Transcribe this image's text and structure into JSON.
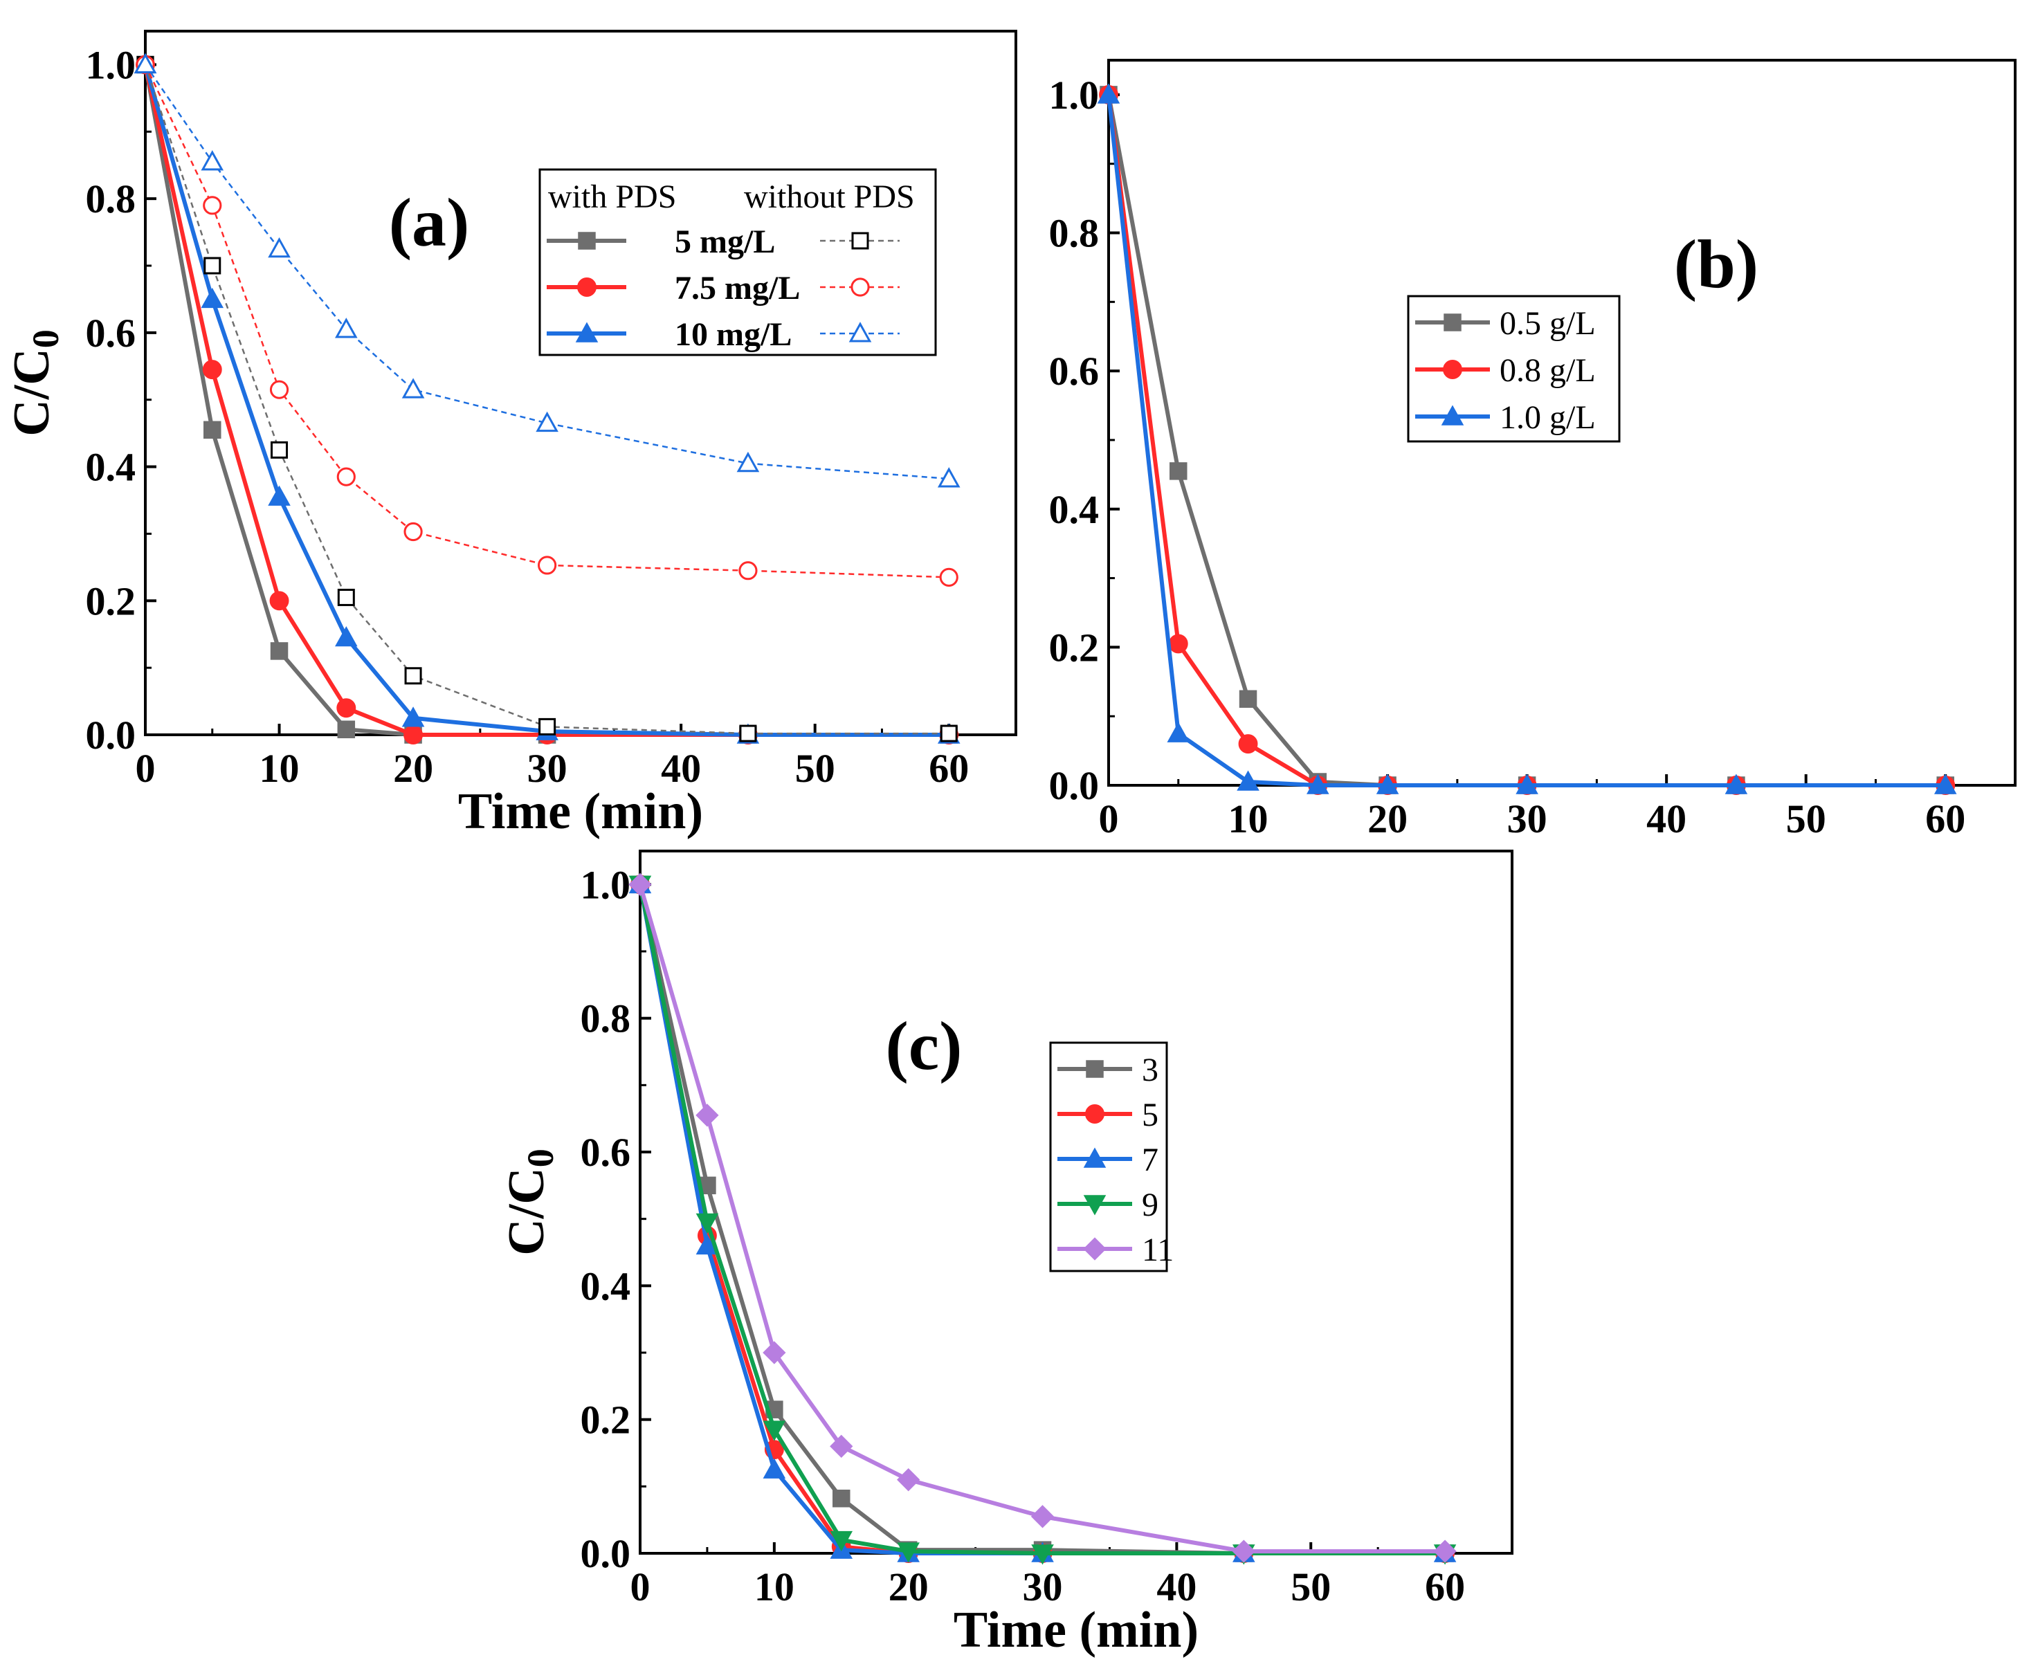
{
  "colors": {
    "gray": "#6e6e6e",
    "red": "#ff2a2a",
    "blue": "#1e6fe0",
    "green": "#10a050",
    "purple": "#b77ee0"
  },
  "chart_data": [
    {
      "panel": "(a)",
      "type": "line",
      "xlabel": "Time (min)",
      "ylabel": "C/C",
      "ylabel_sub": "0",
      "xlim": [
        0,
        65
      ],
      "ylim": [
        0,
        1.05
      ],
      "xticks": [
        0,
        10,
        20,
        30,
        40,
        50,
        60
      ],
      "yticks": [
        "0.0",
        "0.2",
        "0.4",
        "0.6",
        "0.8",
        "1.0"
      ],
      "legend": {
        "position": "top-right",
        "header_with": "with PDS",
        "header_without": "without PDS"
      },
      "x": [
        0,
        5,
        10,
        15,
        20,
        30,
        45,
        60
      ],
      "series": [
        {
          "name": "5 mg/L",
          "group": "with PDS",
          "marker": "square",
          "color": "gray",
          "values": [
            1.0,
            0.455,
            0.125,
            0.008,
            0.0,
            0.0,
            0.0,
            0.0
          ]
        },
        {
          "name": "7.5 mg/L",
          "group": "with PDS",
          "marker": "circle",
          "color": "red",
          "values": [
            1.0,
            0.545,
            0.2,
            0.04,
            0.0,
            0.0,
            0.0,
            0.0
          ]
        },
        {
          "name": "10 mg/L",
          "group": "with PDS",
          "marker": "triangle",
          "color": "blue",
          "values": [
            1.0,
            0.65,
            0.355,
            0.145,
            0.025,
            0.005,
            0.0,
            0.0
          ]
        },
        {
          "name": "5 mg/L",
          "group": "without PDS",
          "marker": "square-open",
          "color": "gray",
          "values": [
            1.0,
            0.7,
            0.425,
            0.205,
            0.088,
            0.012,
            0.002,
            0.002
          ]
        },
        {
          "name": "7.5 mg/L",
          "group": "without PDS",
          "marker": "circle-open",
          "color": "red",
          "values": [
            1.0,
            0.79,
            0.515,
            0.385,
            0.303,
            0.253,
            0.245,
            0.235
          ]
        },
        {
          "name": "10 mg/L",
          "group": "without PDS",
          "marker": "triangle-open",
          "color": "blue",
          "values": [
            1.0,
            0.855,
            0.725,
            0.605,
            0.515,
            0.465,
            0.405,
            0.382
          ]
        }
      ]
    },
    {
      "panel": "(b)",
      "type": "line",
      "xlabel": "",
      "ylabel": "",
      "xlim": [
        0,
        65
      ],
      "ylim": [
        0,
        1.05
      ],
      "xticks": [
        0,
        10,
        20,
        30,
        40,
        50,
        60
      ],
      "yticks": [
        "0.0",
        "0.2",
        "0.4",
        "0.6",
        "0.8",
        "1.0"
      ],
      "legend": {
        "position": "upper-middle"
      },
      "x": [
        0,
        5,
        10,
        15,
        20,
        30,
        45,
        60
      ],
      "series": [
        {
          "name": "0.5 g/L",
          "marker": "square",
          "color": "gray",
          "values": [
            1.0,
            0.455,
            0.125,
            0.005,
            0.0,
            0.0,
            0.0,
            0.0
          ]
        },
        {
          "name": "0.8 g/L",
          "marker": "circle",
          "color": "red",
          "values": [
            1.0,
            0.205,
            0.06,
            0.0,
            0.0,
            0.0,
            0.0,
            0.0
          ]
        },
        {
          "name": "1.0 g/L",
          "marker": "triangle",
          "color": "blue",
          "values": [
            1.0,
            0.075,
            0.005,
            0.0,
            0.0,
            0.0,
            0.0,
            0.0
          ]
        }
      ]
    },
    {
      "panel": "(c)",
      "type": "line",
      "xlabel": "Time (min)",
      "ylabel": "C/C",
      "ylabel_sub": "0",
      "xlim": [
        0,
        65
      ],
      "ylim": [
        0,
        1.05
      ],
      "xticks": [
        0,
        10,
        20,
        30,
        40,
        50,
        60
      ],
      "yticks": [
        "0.0",
        "0.2",
        "0.4",
        "0.6",
        "0.8",
        "1.0"
      ],
      "legend": {
        "position": "upper-middle"
      },
      "x": [
        0,
        5,
        10,
        15,
        20,
        30,
        45,
        60
      ],
      "series": [
        {
          "name": "3",
          "marker": "square",
          "color": "gray",
          "values": [
            1.0,
            0.55,
            0.215,
            0.082,
            0.005,
            0.005,
            0.0,
            0.0
          ]
        },
        {
          "name": "5",
          "marker": "circle",
          "color": "red",
          "values": [
            1.0,
            0.475,
            0.155,
            0.01,
            0.0,
            0.0,
            0.0,
            0.0
          ]
        },
        {
          "name": "7",
          "marker": "triangle",
          "color": "blue",
          "values": [
            1.0,
            0.46,
            0.125,
            0.005,
            0.0,
            0.0,
            0.0,
            0.0
          ]
        },
        {
          "name": "9",
          "marker": "triangle-down",
          "color": "green",
          "values": [
            1.0,
            0.495,
            0.185,
            0.02,
            0.003,
            0.0,
            0.0,
            0.0
          ]
        },
        {
          "name": "11",
          "marker": "diamond",
          "color": "purple",
          "values": [
            1.0,
            0.655,
            0.3,
            0.16,
            0.11,
            0.055,
            0.003,
            0.003
          ]
        }
      ]
    }
  ]
}
